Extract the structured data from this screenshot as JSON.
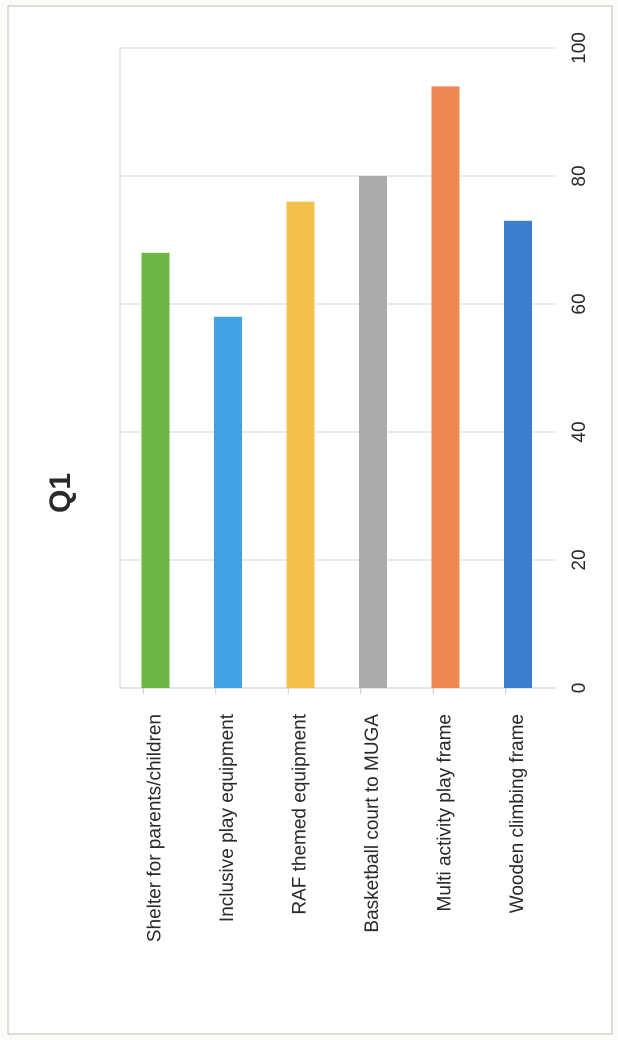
{
  "chart_data": {
    "type": "bar",
    "orientation": "horizontal",
    "title": "Q1",
    "xlabel": "",
    "ylabel": "",
    "xlim": [
      0,
      100
    ],
    "x_ticks": [
      0,
      20,
      40,
      60,
      80,
      100
    ],
    "grid": true,
    "categories": [
      "Wooden climbing frame",
      "Multi activity play frame",
      "Basketball court to MUGA",
      "RAF themed equipment",
      "Inclusive play equipment",
      "Shelter for parents/children"
    ],
    "values": [
      73,
      94,
      80,
      76,
      58,
      68
    ],
    "colors": [
      "#3c7dd0",
      "#ee8752",
      "#acacac",
      "#f5c04a",
      "#41a3e6",
      "#6cb646"
    ]
  }
}
